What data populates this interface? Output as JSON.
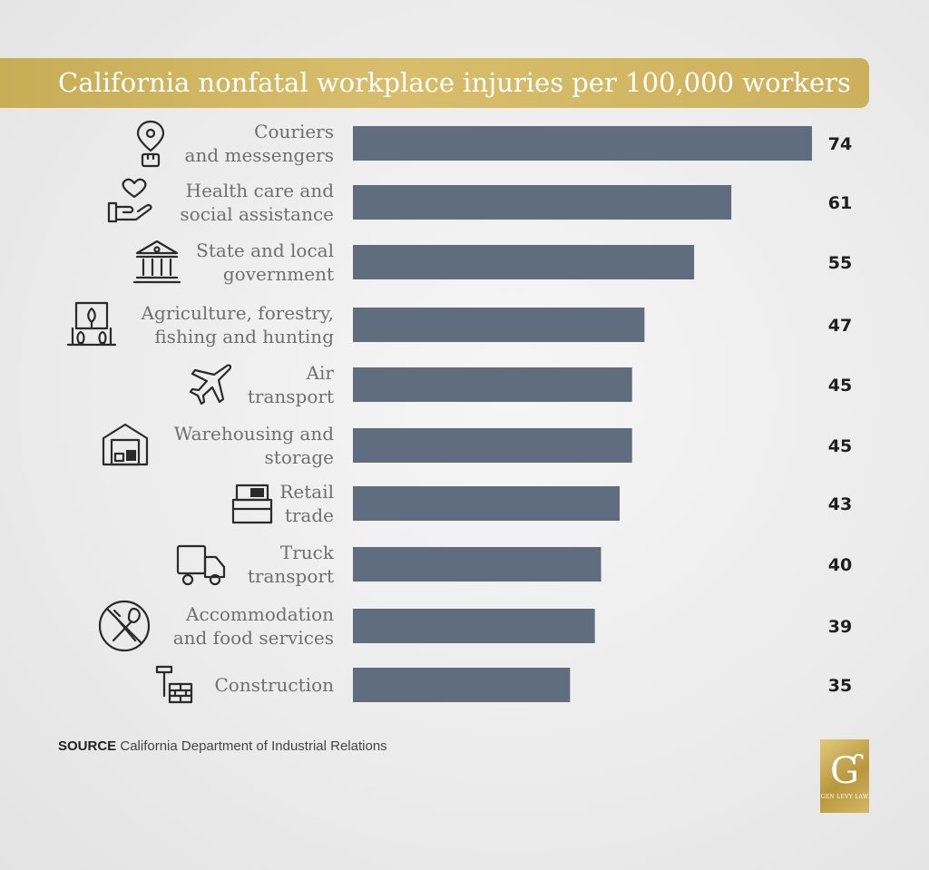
{
  "title": "California nonfatal workplace injuries per 100,000 workers",
  "source": {
    "prefix": "SOURCE",
    "text": "California Department of Industrial Relations"
  },
  "logo": {
    "text": "GEN LEVY LAW"
  },
  "colors": {
    "bar": "#5f6d7e",
    "banner": "#d4b862",
    "background": "#ebebeb"
  },
  "chart_data": {
    "type": "bar",
    "orientation": "horizontal",
    "title": "California nonfatal workplace injuries per 100,000 workers",
    "categories": [
      [
        "Couriers",
        "and messengers"
      ],
      [
        "Health care and",
        "social assistance"
      ],
      [
        "State and local",
        "government"
      ],
      [
        "Agriculture, forestry,",
        "fishing and hunting"
      ],
      [
        "Air",
        "transport"
      ],
      [
        "Warehousing and",
        "storage"
      ],
      [
        "Retail",
        "trade"
      ],
      [
        "Truck",
        "transport"
      ],
      [
        "Accommodation",
        "and food services"
      ],
      [
        "Construction"
      ]
    ],
    "icons": [
      "location-package-icon",
      "heart-hand-icon",
      "government-building-icon",
      "farm-sign-icon",
      "airplane-icon",
      "warehouse-icon",
      "retail-counter-icon",
      "truck-icon",
      "no-food-icon",
      "hammer-bricks-icon"
    ],
    "values": [
      74,
      61,
      55,
      47,
      45,
      45,
      43,
      40,
      39,
      35
    ],
    "xlim": [
      0,
      74
    ],
    "grid": false,
    "legend": "none"
  }
}
